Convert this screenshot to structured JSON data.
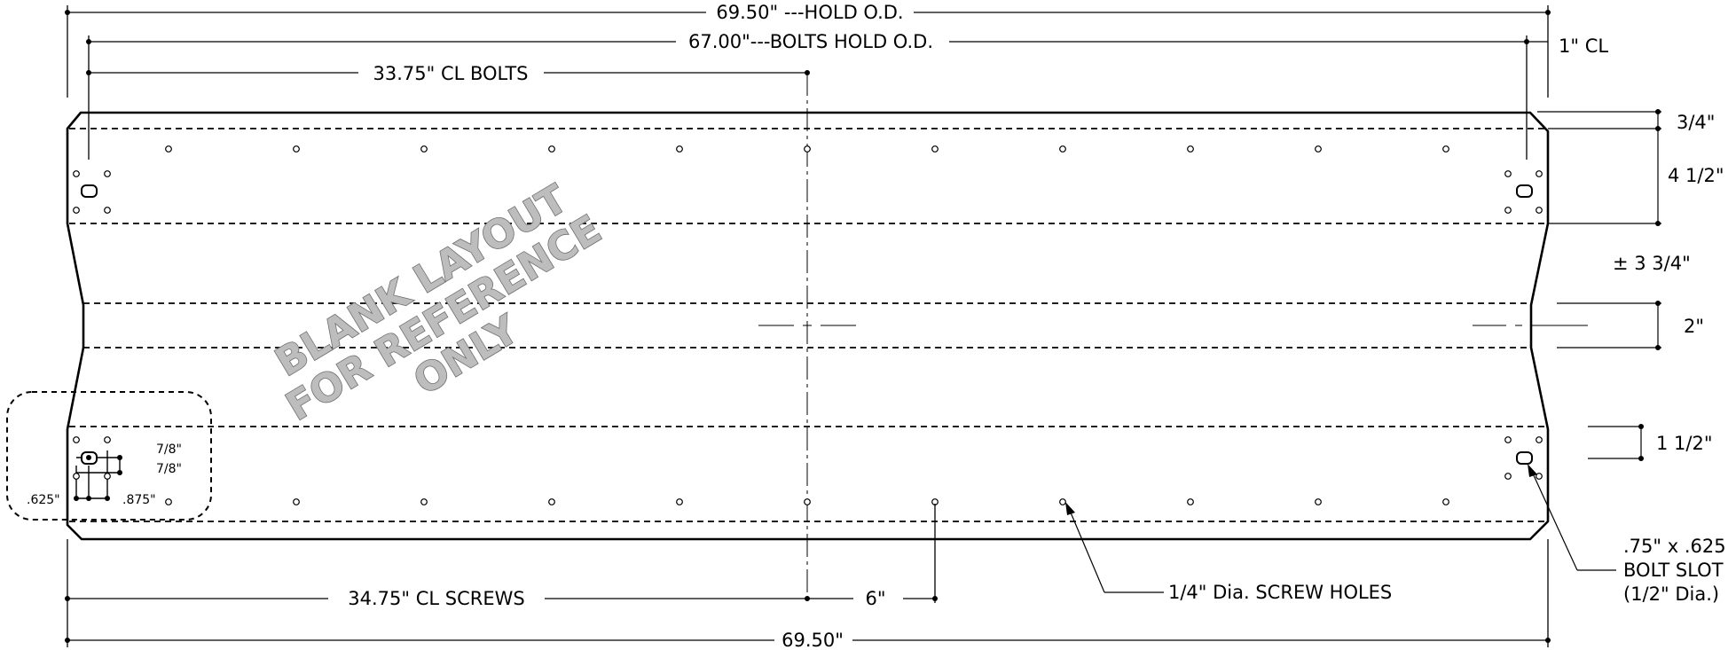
{
  "colors": {
    "line": "#000000",
    "watermark_fill": "#bdbdbd",
    "watermark_stroke": "#6f6f6f"
  },
  "dimensions": {
    "top_overall": "69.50\" ---HOLD O.D.",
    "bolts_overall": "67.00\"---BOLTS HOLD O.D.",
    "cl_bolts": "33.75\" CL BOLTS",
    "bottom_overall": "69.50\"",
    "cl_screws": "34.75\" CL SCREWS",
    "screw_offset": "6\""
  },
  "right_dims": {
    "cl_offset": "1\" CL",
    "top_edge": "3/4\"",
    "bolt_band": "4 1/2\"",
    "gap": "± 3 3/4\"",
    "center_band": "2\"",
    "lower_band": "1 1/2\""
  },
  "callouts": {
    "screw_holes": "1/4\" Dia. SCREW HOLES",
    "bolt_slot_line1": ".75\" x .625",
    "bolt_slot_line2": "BOLT SLOT",
    "bolt_slot_line3": "(1/2\" Dia.)"
  },
  "detail": {
    "seven_eighths_a": "7/8\"",
    "seven_eighths_b": "7/8\"",
    "left_spacing": ".625\"",
    "right_spacing": ".875\""
  },
  "watermark": {
    "line1": "BLANK LAYOUT",
    "line2": "FOR REFERENCE",
    "line3": "ONLY"
  }
}
